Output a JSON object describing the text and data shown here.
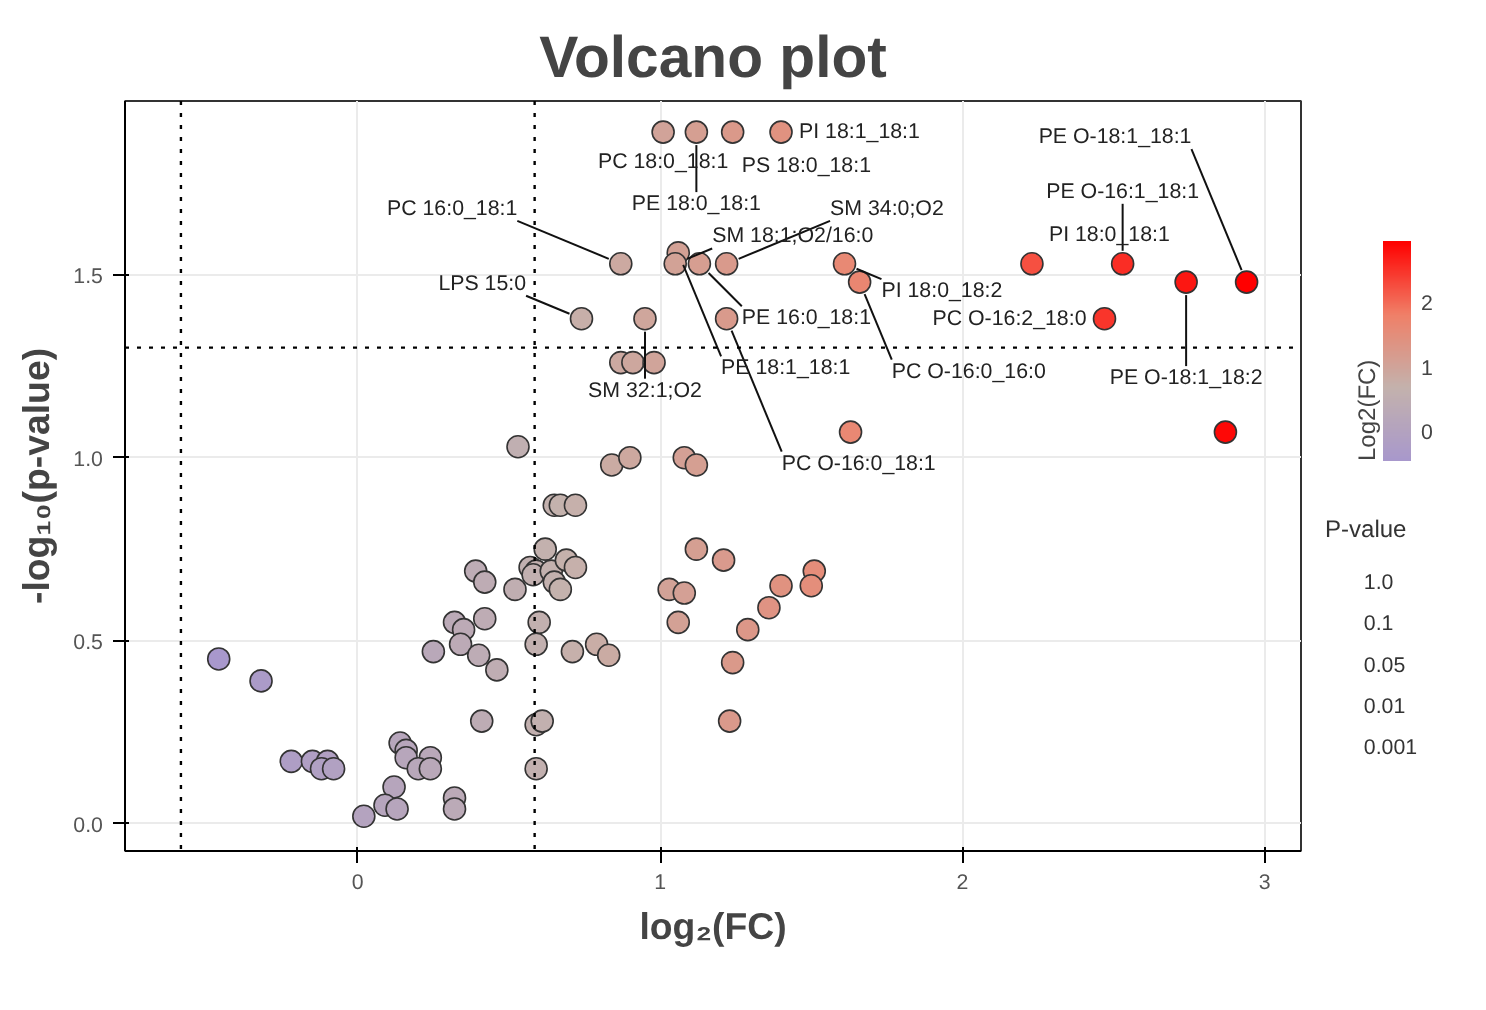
{
  "chart_data": {
    "type": "scatter",
    "title": "Volcano plot",
    "xlabel": "log₂(FC)",
    "ylabel": "-log₁₀(p-value)",
    "clabel": "Log2(FC)",
    "x": [
      1.01,
      1.12,
      1.24,
      1.4,
      0.87,
      1.06,
      1.05,
      1.13,
      1.22,
      1.61,
      1.66,
      2.23,
      2.53,
      2.74,
      2.94,
      2.47,
      0.74,
      0.95,
      1.22,
      0.87,
      0.91,
      0.98,
      0.53,
      0.84,
      0.9,
      1.08,
      1.12,
      1.63,
      2.87,
      0.65,
      0.67,
      0.72,
      0.62,
      0.39,
      0.42,
      0.57,
      0.59,
      0.58,
      0.64,
      0.69,
      0.72,
      0.65,
      0.67,
      0.52,
      0.32,
      0.35,
      0.42,
      0.6,
      0.25,
      0.34,
      0.4,
      0.46,
      0.59,
      0.71,
      0.79,
      0.83,
      1.12,
      1.21,
      1.03,
      1.08,
      1.06,
      1.24,
      1.23,
      0.41,
      0.59,
      0.61,
      0.59,
      -0.46,
      -0.32,
      -0.22,
      -0.15,
      -0.1,
      -0.12,
      -0.08,
      0.14,
      0.16,
      0.16,
      0.24,
      0.2,
      0.24,
      0.12,
      0.09,
      0.13,
      0.32,
      0.32,
      0.02,
      1.51,
      1.5,
      1.4,
      1.36,
      1.29
    ],
    "values": [
      1.89,
      1.89,
      1.89,
      1.89,
      1.53,
      1.56,
      1.53,
      1.53,
      1.53,
      1.53,
      1.48,
      1.53,
      1.53,
      1.48,
      1.48,
      1.38,
      1.38,
      1.38,
      1.38,
      1.26,
      1.26,
      1.26,
      1.03,
      0.98,
      1.0,
      1.0,
      0.98,
      1.07,
      1.07,
      0.87,
      0.87,
      0.87,
      0.75,
      0.69,
      0.66,
      0.7,
      0.69,
      0.68,
      0.69,
      0.72,
      0.7,
      0.66,
      0.64,
      0.64,
      0.55,
      0.53,
      0.56,
      0.55,
      0.47,
      0.49,
      0.46,
      0.42,
      0.49,
      0.47,
      0.49,
      0.46,
      0.75,
      0.72,
      0.64,
      0.63,
      0.55,
      0.44,
      0.28,
      0.28,
      0.27,
      0.28,
      0.15,
      0.45,
      0.39,
      0.17,
      0.17,
      0.17,
      0.15,
      0.15,
      0.22,
      0.2,
      0.18,
      0.18,
      0.15,
      0.15,
      0.1,
      0.05,
      0.04,
      0.07,
      0.04,
      0.02,
      0.69,
      0.65,
      0.65,
      0.59,
      0.53
    ],
    "cvalues": [
      1.01,
      1.12,
      1.24,
      1.4,
      0.87,
      1.06,
      1.05,
      1.13,
      1.22,
      1.61,
      1.66,
      2.23,
      2.53,
      2.74,
      2.94,
      2.47,
      0.74,
      0.95,
      1.22,
      0.87,
      0.91,
      0.98,
      0.53,
      0.84,
      0.9,
      1.08,
      1.12,
      1.63,
      2.87,
      0.65,
      0.67,
      0.72,
      0.62,
      0.39,
      0.42,
      0.57,
      0.59,
      0.58,
      0.64,
      0.69,
      0.72,
      0.65,
      0.67,
      0.52,
      0.32,
      0.35,
      0.42,
      0.6,
      0.25,
      0.34,
      0.4,
      0.46,
      0.59,
      0.71,
      0.79,
      0.83,
      1.12,
      1.21,
      1.03,
      1.08,
      1.06,
      1.24,
      1.23,
      0.41,
      0.59,
      0.61,
      0.59,
      -0.46,
      -0.32,
      -0.22,
      -0.15,
      -0.1,
      -0.12,
      -0.08,
      0.14,
      0.16,
      0.16,
      0.24,
      0.2,
      0.24,
      0.12,
      0.09,
      0.13,
      0.32,
      0.32,
      0.02,
      1.51,
      1.5,
      1.4,
      1.36,
      1.29
    ],
    "clim": [
      -0.46,
      2.94
    ],
    "cticks": [
      0,
      1,
      2
    ],
    "xlim": [
      -0.77,
      3.12
    ],
    "ylim": [
      -0.075,
      1.975
    ],
    "xticks": [
      0,
      1,
      2,
      3
    ],
    "yticks": [
      {
        "value": 0,
        "label": "0.0"
      },
      {
        "value": 0.5,
        "label": "0.5"
      },
      {
        "value": 1,
        "label": "1.0"
      },
      {
        "value": 1.5,
        "label": "1.5"
      }
    ],
    "grid": true,
    "marker": "circle",
    "ref_lines": [
      {
        "axis": "x",
        "value": -0.585,
        "line_style": "dotted",
        "color": "#000000"
      },
      {
        "axis": "x",
        "value": 0.585,
        "line_style": "dotted",
        "color": "#000000"
      },
      {
        "axis": "y",
        "value": 1.301,
        "line_style": "dotted",
        "color": "#000000"
      }
    ],
    "annotations": [
      {
        "text": "PC 18:0_18:1",
        "x": 1.01,
        "y": 1.89
      },
      {
        "text": "PE 18:0_18:1",
        "x": 1.12,
        "y": 1.89
      },
      {
        "text": "PS 18:0_18:1",
        "x": 1.24,
        "y": 1.89
      },
      {
        "text": "PI 18:1_18:1",
        "x": 1.4,
        "y": 1.89
      },
      {
        "text": "PC 16:0_18:1",
        "x": 0.87,
        "y": 1.53
      },
      {
        "text": "PE 18:1_18:1",
        "x": 1.06,
        "y": 1.56
      },
      {
        "text": "SM 18:1;O2/16:0",
        "x": 1.05,
        "y": 1.53
      },
      {
        "text": "PE 16:0_18:1",
        "x": 1.13,
        "y": 1.53
      },
      {
        "text": "SM 34:0;O2",
        "x": 1.22,
        "y": 1.53
      },
      {
        "text": "PI 18:0_18:2",
        "x": 1.61,
        "y": 1.53
      },
      {
        "text": "PC O-16:0_16:0",
        "x": 1.66,
        "y": 1.48
      },
      {
        "text": "PI 18:0_18:1",
        "x": 2.23,
        "y": 1.53
      },
      {
        "text": "PE O-16:1_18:1",
        "x": 2.53,
        "y": 1.53
      },
      {
        "text": "PE O-18:1_18:2",
        "x": 2.74,
        "y": 1.48
      },
      {
        "text": "PE O-18:1_18:1",
        "x": 2.94,
        "y": 1.48
      },
      {
        "text": "PC O-16:2_18:0",
        "x": 2.47,
        "y": 1.38
      },
      {
        "text": "LPS 15:0",
        "x": 0.74,
        "y": 1.38
      },
      {
        "text": "SM 32:1;O2",
        "x": 0.95,
        "y": 1.38
      },
      {
        "text": "PC O-16:0_18:1",
        "x": 1.22,
        "y": 1.38
      },
      "P-value",
      "1.0",
      "0.1",
      "0.05",
      "0.01",
      "0.001"
    ]
  }
}
